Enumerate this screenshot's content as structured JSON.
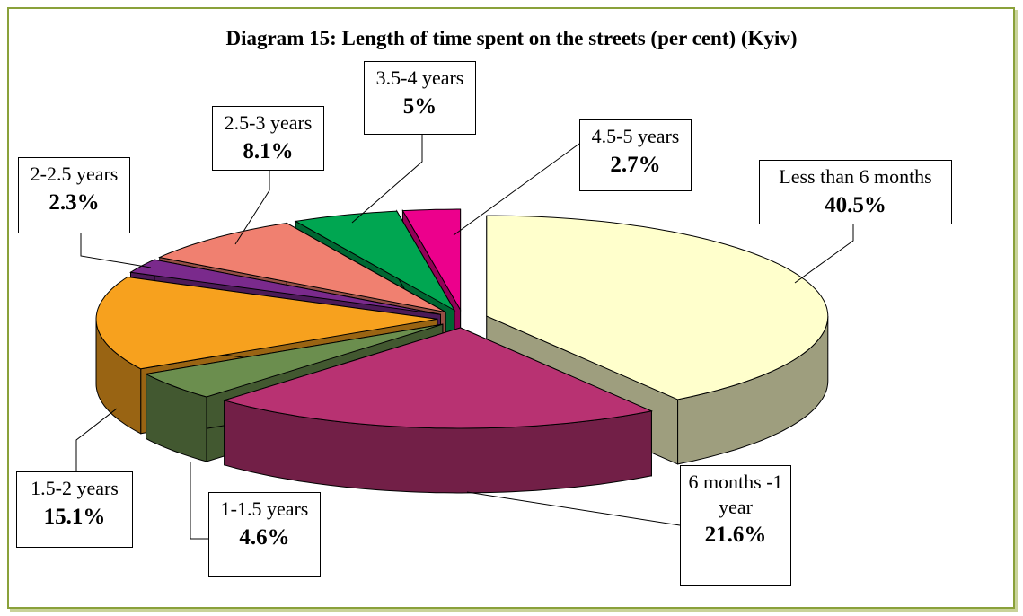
{
  "chart_data": {
    "type": "pie3d",
    "title": "Diagram 15: Length of time spent on the streets (per cent) (Kyiv)",
    "categories": [
      "Less than 6 months",
      "6 months -1 year",
      "1-1.5 years",
      "1.5-2 years",
      "2-2.5 years",
      "2.5-3 years",
      "3.5-4 years",
      "4.5-5 years"
    ],
    "values": [
      40.5,
      21.6,
      4.6,
      15.1,
      2.3,
      8.1,
      5,
      2.7
    ],
    "value_labels": [
      "40.5%",
      "21.6%",
      "4.6%",
      "15.1%",
      "2.3%",
      "8.1%",
      "5%",
      "2.7%"
    ],
    "colors": [
      "#ffffcc",
      "#b83272",
      "#6b8e4e",
      "#f7a11e",
      "#7a2a8c",
      "#f08070",
      "#00a651",
      "#ec008c"
    ]
  }
}
